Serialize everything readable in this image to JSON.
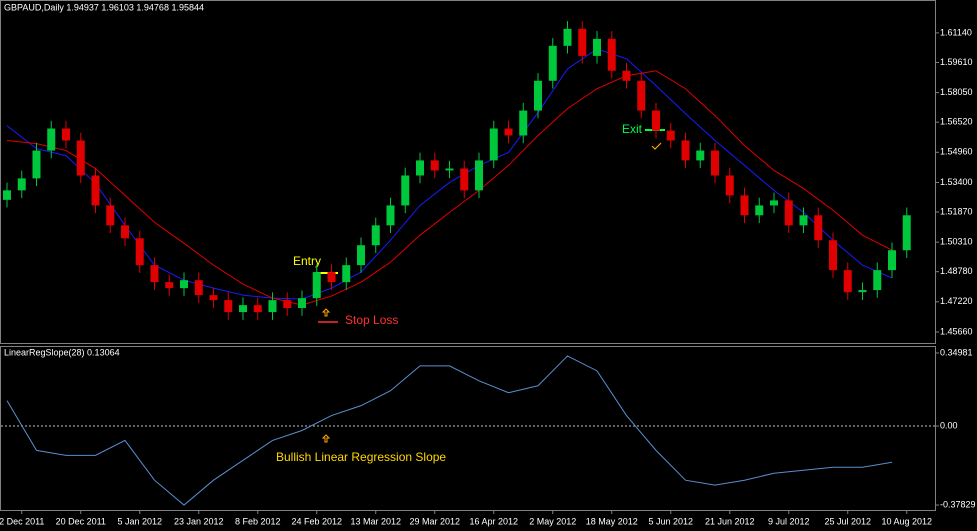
{
  "chart_data": [
    {
      "type": "candlestick",
      "header": "GBPAUD,Daily  1.94937 1.96103 1.94768 1.95844",
      "up_color": "#00c83c",
      "down_color": "#e00000",
      "open": [
        1.525,
        1.5299,
        1.5361,
        1.5505,
        1.5619,
        1.5557,
        1.5376,
        1.5221,
        1.5118,
        1.5051,
        1.4912,
        1.4824,
        1.4793,
        1.4834,
        1.4757,
        1.4731,
        1.4669,
        1.4705,
        1.4669,
        1.4731,
        1.469,
        1.4741,
        1.4876,
        1.4824,
        1.4912,
        1.5015,
        1.5118,
        1.5221,
        1.5376,
        1.5454,
        1.5402,
        1.5412,
        1.5299,
        1.5454,
        1.5619,
        1.5583,
        1.5712,
        1.5866,
        1.6047,
        1.6135,
        1.5995,
        1.6083,
        1.5918,
        1.5866,
        1.5712,
        1.5608,
        1.5557,
        1.5454,
        1.5505,
        1.5376,
        1.5273,
        1.517,
        1.5221,
        1.5247,
        1.5118,
        1.517,
        1.5041,
        1.4886,
        1.4772,
        1.4783,
        1.4886,
        1.4989
      ],
      "high": [
        1.5339,
        1.5401,
        1.5545,
        1.5659,
        1.5659,
        1.5597,
        1.5416,
        1.5261,
        1.5158,
        1.5091,
        1.4952,
        1.4864,
        1.4874,
        1.4874,
        1.4797,
        1.4771,
        1.4745,
        1.4745,
        1.4771,
        1.4771,
        1.4781,
        1.4916,
        1.4916,
        1.4952,
        1.5055,
        1.5158,
        1.5261,
        1.5416,
        1.5494,
        1.5494,
        1.5452,
        1.5452,
        1.5494,
        1.5659,
        1.5659,
        1.5752,
        1.5906,
        1.6087,
        1.6175,
        1.6175,
        1.6123,
        1.6123,
        1.5958,
        1.5906,
        1.5752,
        1.5648,
        1.5597,
        1.5545,
        1.5545,
        1.5416,
        1.5313,
        1.5261,
        1.5287,
        1.5287,
        1.521,
        1.521,
        1.5081,
        1.4926,
        1.4823,
        1.4926,
        1.5029,
        1.521
      ],
      "low": [
        1.521,
        1.5259,
        1.5321,
        1.5465,
        1.5517,
        1.5336,
        1.5181,
        1.5078,
        1.5011,
        1.4872,
        1.4784,
        1.4753,
        1.4753,
        1.4717,
        1.4691,
        1.4629,
        1.4629,
        1.4629,
        1.4629,
        1.465,
        1.465,
        1.4701,
        1.4784,
        1.4784,
        1.4872,
        1.4975,
        1.5078,
        1.5181,
        1.5336,
        1.5362,
        1.5362,
        1.5259,
        1.5259,
        1.5414,
        1.5543,
        1.5543,
        1.5672,
        1.5826,
        1.6007,
        1.5955,
        1.5955,
        1.5878,
        1.5826,
        1.5672,
        1.5568,
        1.5517,
        1.5414,
        1.5414,
        1.5336,
        1.5233,
        1.513,
        1.513,
        1.5181,
        1.5078,
        1.5078,
        1.5001,
        1.4846,
        1.4732,
        1.4732,
        1.4743,
        1.4846,
        1.4949
      ],
      "close": [
        1.5299,
        1.5361,
        1.5505,
        1.5619,
        1.5557,
        1.5376,
        1.5221,
        1.5118,
        1.5051,
        1.4912,
        1.4824,
        1.4793,
        1.4834,
        1.4757,
        1.4731,
        1.4669,
        1.4705,
        1.4669,
        1.4731,
        1.469,
        1.4741,
        1.4876,
        1.4824,
        1.4912,
        1.5015,
        1.5118,
        1.5221,
        1.5376,
        1.5454,
        1.5402,
        1.5412,
        1.5299,
        1.5454,
        1.5619,
        1.5583,
        1.5712,
        1.5866,
        1.6047,
        1.6135,
        1.5995,
        1.6083,
        1.5918,
        1.5866,
        1.5712,
        1.5608,
        1.5557,
        1.5454,
        1.5505,
        1.5376,
        1.5273,
        1.517,
        1.5221,
        1.5247,
        1.5118,
        1.517,
        1.5041,
        1.4886,
        1.4772,
        1.4783,
        1.4886,
        1.4989,
        1.517
      ],
      "series": [
        {
          "color": "#1a1aff",
          "x": [
            0,
            2,
            4,
            6,
            8,
            10,
            12,
            14,
            16,
            18,
            20,
            22,
            24,
            26,
            28,
            30,
            32,
            34,
            36,
            38,
            40,
            42,
            44,
            46,
            48,
            50,
            52,
            54,
            56,
            58,
            60
          ],
          "values": [
            1.5634,
            1.5515,
            1.5479,
            1.5335,
            1.5118,
            1.4912,
            1.4834,
            1.4793,
            1.4757,
            1.4741,
            1.4736,
            1.4793,
            1.4876,
            1.5041,
            1.5221,
            1.534,
            1.5428,
            1.5495,
            1.5701,
            1.5928,
            1.6031,
            1.598,
            1.5841,
            1.5696,
            1.5557,
            1.5428,
            1.5299,
            1.5185,
            1.5041,
            1.4912,
            1.4845
          ]
        },
        {
          "color": "#e00000",
          "x": [
            0,
            2,
            4,
            6,
            8,
            10,
            12,
            14,
            16,
            18,
            20,
            22,
            24,
            26,
            28,
            30,
            32,
            34,
            36,
            38,
            40,
            42,
            44,
            46,
            48,
            50,
            52,
            54,
            56,
            58,
            60
          ],
          "values": [
            1.5557,
            1.5541,
            1.5505,
            1.5412,
            1.5273,
            1.5134,
            1.5025,
            1.4912,
            1.4814,
            1.4741,
            1.4705,
            1.4752,
            1.4824,
            1.4927,
            1.5067,
            1.5185,
            1.5299,
            1.5428,
            1.5583,
            1.5722,
            1.5825,
            1.5892,
            1.5918,
            1.5825,
            1.5686,
            1.5531,
            1.5402,
            1.5309,
            1.5196,
            1.5067,
            1.4989
          ]
        }
      ],
      "ylim": [
        1.4509,
        1.6279
      ],
      "yticks": [
        {
          "value": 1.6114,
          "label": "1.61140"
        },
        {
          "value": 1.5961,
          "label": "1.59610"
        },
        {
          "value": 1.5805,
          "label": "1.58050"
        },
        {
          "value": 1.5652,
          "label": "1.56520"
        },
        {
          "value": 1.5496,
          "label": "1.54960"
        },
        {
          "value": 1.534,
          "label": "1.53400"
        },
        {
          "value": 1.5187,
          "label": "1.51870"
        },
        {
          "value": 1.5031,
          "label": "1.50310"
        },
        {
          "value": 1.4878,
          "label": "1.48780"
        },
        {
          "value": 1.4722,
          "label": "1.47220"
        },
        {
          "value": 1.4566,
          "label": "1.45660"
        }
      ],
      "x_labels": [
        "2 Dec 2011",
        "20 Dec 2011",
        "5 Jan 2012",
        "23 Jan 2012",
        "8 Feb 2012",
        "24 Feb 2012",
        "13 Mar 2012",
        "29 Mar 2012",
        "16 Apr 2012",
        "2 May 2012",
        "18 May 2012",
        "5 Jun 2012",
        "21 Jun 2012",
        "9 Jul 2012",
        "25 Jul 2012",
        "10 Aug 2012"
      ],
      "annotations": {
        "entry": "Entry",
        "stop_loss": "Stop Loss",
        "exit": "Exit"
      }
    },
    {
      "type": "line",
      "header": "LinearRegSlope(28) 0.13064",
      "color": "#5a8fd0",
      "x": [
        0,
        2,
        4,
        6,
        8,
        10,
        12,
        14,
        16,
        18,
        20,
        22,
        24,
        26,
        28,
        30,
        32,
        34,
        36,
        38,
        40,
        42,
        44,
        46,
        48,
        50,
        52,
        54,
        56,
        58,
        60
      ],
      "values": [
        0.1214,
        -0.1166,
        -0.1404,
        -0.1404,
        -0.069,
        -0.2594,
        -0.3784,
        -0.2594,
        -0.1642,
        -0.069,
        -0.0214,
        0.05,
        0.0976,
        0.169,
        0.288,
        0.288,
        0.2166,
        0.1594,
        0.1928,
        0.3356,
        0.2642,
        0.05,
        -0.1166,
        -0.2594,
        -0.2832,
        -0.2594,
        -0.2261,
        -0.2118,
        -0.1975,
        -0.1975,
        -0.1737
      ],
      "ylim": [
        -0.4021,
        0.3784
      ],
      "yticks": [
        0.34981,
        {
          "value": 0,
          "label": "0.00"
        },
        -0.37829
      ],
      "annotation": "Bullish Linear Regression Slope"
    }
  ]
}
